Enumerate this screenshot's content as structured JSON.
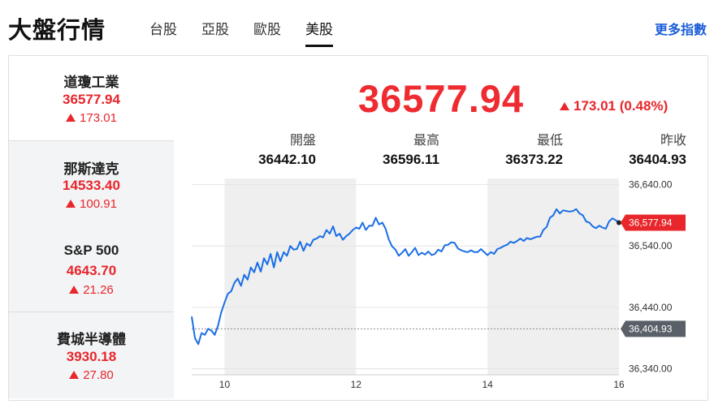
{
  "header": {
    "title": "大盤行情",
    "tabs": [
      {
        "label": "台股",
        "active": false
      },
      {
        "label": "亞股",
        "active": false
      },
      {
        "label": "歐股",
        "active": false
      },
      {
        "label": "美股",
        "active": true
      }
    ],
    "more_link": "更多指數"
  },
  "sidebar": {
    "items": [
      {
        "name": "道瓊工業",
        "price": "36577.94",
        "change": "173.01",
        "direction": "up",
        "active": true
      },
      {
        "name": "那斯達克",
        "price": "14533.40",
        "change": "100.91",
        "direction": "up",
        "active": false
      },
      {
        "name": "S&P 500",
        "price": "4643.70",
        "change": "21.26",
        "direction": "up",
        "active": false
      },
      {
        "name": "費城半導體",
        "price": "3930.18",
        "change": "27.80",
        "direction": "up",
        "active": false
      }
    ]
  },
  "quote": {
    "price": "36577.94",
    "change": "173.01 (0.48%)",
    "direction": "up",
    "stats": [
      {
        "label": "開盤",
        "value": "36442.10"
      },
      {
        "label": "最高",
        "value": "36596.11"
      },
      {
        "label": "最低",
        "value": "36373.22"
      },
      {
        "label": "昨收",
        "value": "36404.93"
      }
    ]
  },
  "colors": {
    "up": "#e8262b",
    "line": "#1a6ee6",
    "session_shade": "#efefef",
    "link": "#1a5dd8",
    "prev_close_tag": "#5a6068"
  },
  "chart_data": {
    "type": "line",
    "x_ticks": [
      "10",
      "12",
      "14",
      "16"
    ],
    "y_ticks": [
      "36,640.00",
      "36,540.00",
      "36,440.00",
      "36,340.00"
    ],
    "ylim": [
      36330,
      36650
    ],
    "xlim": [
      9.5,
      16
    ],
    "shaded_ranges": [
      [
        10,
        12
      ],
      [
        14,
        16
      ]
    ],
    "current_tag": "36,577.94",
    "current_value": 36577.94,
    "prev_close_tag": "36,404.93",
    "prev_close_value": 36404.93,
    "x": [
      9.5,
      9.55,
      9.6,
      9.65,
      9.7,
      9.75,
      9.8,
      9.85,
      9.9,
      9.95,
      10.0,
      10.05,
      10.1,
      10.15,
      10.2,
      10.25,
      10.3,
      10.35,
      10.4,
      10.45,
      10.5,
      10.55,
      10.6,
      10.65,
      10.7,
      10.75,
      10.8,
      10.85,
      10.9,
      10.95,
      11.0,
      11.05,
      11.1,
      11.15,
      11.2,
      11.25,
      11.3,
      11.35,
      11.4,
      11.45,
      11.5,
      11.55,
      11.6,
      11.65,
      11.7,
      11.75,
      11.8,
      11.85,
      11.9,
      11.95,
      12.0,
      12.05,
      12.1,
      12.15,
      12.2,
      12.25,
      12.3,
      12.35,
      12.4,
      12.45,
      12.5,
      12.55,
      12.6,
      12.65,
      12.7,
      12.75,
      12.8,
      12.85,
      12.9,
      12.95,
      13.0,
      13.05,
      13.1,
      13.15,
      13.2,
      13.25,
      13.3,
      13.35,
      13.4,
      13.45,
      13.5,
      13.55,
      13.6,
      13.65,
      13.7,
      13.75,
      13.8,
      13.85,
      13.9,
      13.95,
      14.0,
      14.05,
      14.1,
      14.15,
      14.2,
      14.25,
      14.3,
      14.35,
      14.4,
      14.45,
      14.5,
      14.55,
      14.6,
      14.65,
      14.7,
      14.75,
      14.8,
      14.85,
      14.9,
      14.95,
      15.0,
      15.05,
      15.1,
      15.15,
      15.2,
      15.25,
      15.3,
      15.35,
      15.4,
      15.45,
      15.5,
      15.55,
      15.6,
      15.65,
      15.7,
      15.75,
      15.8,
      15.85,
      15.9,
      15.95,
      16.0
    ],
    "y": [
      36425,
      36390,
      36380,
      36398,
      36395,
      36405,
      36402,
      36395,
      36410,
      36432,
      36448,
      36462,
      36466,
      36480,
      36487,
      36475,
      36493,
      36485,
      36505,
      36497,
      36513,
      36498,
      36520,
      36510,
      36527,
      36505,
      36530,
      36515,
      36530,
      36524,
      36540,
      36534,
      36535,
      36547,
      36532,
      36544,
      36540,
      36550,
      36552,
      36556,
      36554,
      36566,
      36560,
      36572,
      36556,
      36560,
      36550,
      36556,
      36560,
      36566,
      36570,
      36568,
      36578,
      36566,
      36573,
      36573,
      36586,
      36575,
      36578,
      36568,
      36550,
      36539,
      36534,
      36524,
      36529,
      36535,
      36524,
      36530,
      36537,
      36525,
      36529,
      36526,
      36531,
      36525,
      36527,
      36534,
      36531,
      36541,
      36542,
      36546,
      36545,
      36536,
      36533,
      36531,
      36530,
      36533,
      36530,
      36530,
      36535,
      36530,
      36525,
      36530,
      36527,
      36535,
      36537,
      36540,
      36542,
      36547,
      36545,
      36548,
      36552,
      36548,
      36553,
      36551,
      36553,
      36555,
      36555,
      36566,
      36571,
      36586,
      36590,
      36600,
      36593,
      36598,
      36597,
      36596,
      36597,
      36600,
      36593,
      36590,
      36580,
      36578,
      36572,
      36569,
      36573,
      36570,
      36568,
      36580,
      36585,
      36582,
      36578
    ]
  }
}
